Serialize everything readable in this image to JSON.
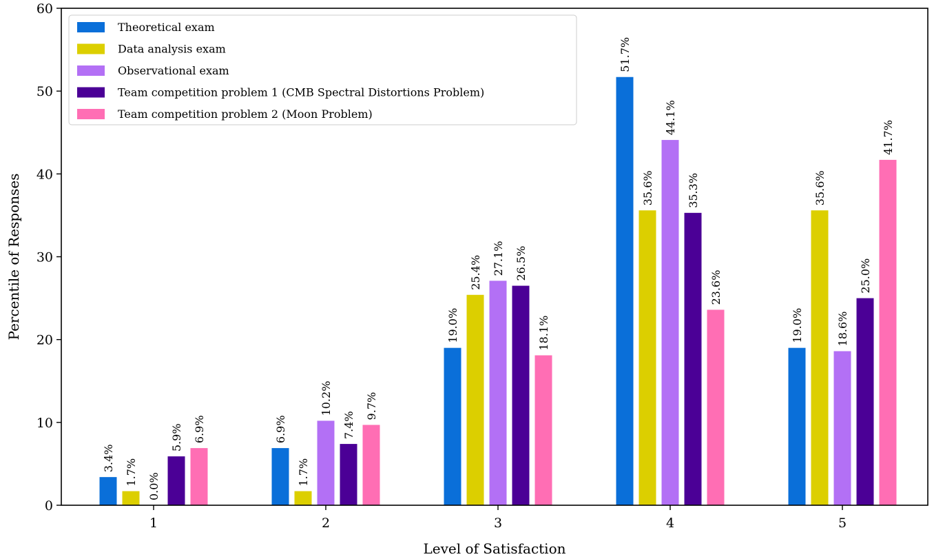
{
  "chart_data": {
    "type": "bar",
    "title": "",
    "xlabel": "Level of Satisfaction",
    "ylabel": "Percentile of Responses",
    "ylim": [
      0,
      60
    ],
    "yticks": [
      "0",
      "10",
      "20",
      "30",
      "40",
      "50",
      "60"
    ],
    "categories": [
      "1",
      "2",
      "3",
      "4",
      "5"
    ],
    "grid": false,
    "legend_position": "top-left",
    "series": [
      {
        "name": "Theoretical exam",
        "color": "#0a6fd9",
        "values": [
          3.4,
          6.9,
          19.0,
          51.7,
          19.0
        ],
        "labels": [
          "3.4%",
          "6.9%",
          "19.0%",
          "51.7%",
          "19.0%"
        ]
      },
      {
        "name": "Data analysis exam",
        "color": "#dccf00",
        "values": [
          1.7,
          1.7,
          25.4,
          35.6,
          35.6
        ],
        "labels": [
          "1.7%",
          "1.7%",
          "25.4%",
          "35.6%",
          "35.6%"
        ]
      },
      {
        "name": "Observational exam",
        "color": "#b370f5",
        "values": [
          0.0,
          10.2,
          27.1,
          44.1,
          18.6
        ],
        "labels": [
          "0.0%",
          "10.2%",
          "27.1%",
          "44.1%",
          "18.6%"
        ]
      },
      {
        "name": "Team competition problem 1 (CMB Spectral Distortions Problem)",
        "color": "#4b0096",
        "values": [
          5.9,
          7.4,
          26.5,
          35.3,
          25.0
        ],
        "labels": [
          "5.9%",
          "7.4%",
          "26.5%",
          "35.3%",
          "25.0%"
        ]
      },
      {
        "name": "Team competition problem 2 (Moon Problem)",
        "color": "#ff6eb4",
        "values": [
          6.9,
          9.7,
          18.1,
          23.6,
          41.7
        ],
        "labels": [
          "6.9%",
          "9.7%",
          "18.1%",
          "23.6%",
          "41.7%"
        ]
      }
    ]
  }
}
